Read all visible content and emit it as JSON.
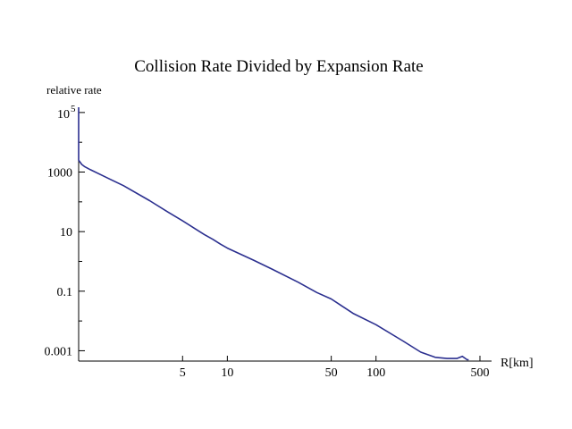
{
  "chart_data": {
    "type": "line",
    "title": "Collision Rate Divided by Expansion Rate",
    "ylabel": "relative rate",
    "xlabel": "R[km]",
    "xscale": "log",
    "yscale": "log",
    "xlim": [
      1,
      560
    ],
    "ylim": [
      0.0004,
      200000
    ],
    "x_ticks": [
      {
        "value": 5,
        "label": "5"
      },
      {
        "value": 10,
        "label": "10"
      },
      {
        "value": 50,
        "label": "50"
      },
      {
        "value": 100,
        "label": "100"
      },
      {
        "value": 500,
        "label": "500"
      }
    ],
    "y_ticks": [
      {
        "value": 100000,
        "base": "10",
        "exp": "5"
      },
      {
        "value": 1000,
        "label": "1000"
      },
      {
        "value": 10,
        "label": "10"
      },
      {
        "value": 0.1,
        "label": "0.1"
      },
      {
        "value": 0.001,
        "label": "0.001"
      }
    ],
    "series": [
      {
        "color": "#2b2f8f",
        "x": [
          1,
          1.0,
          1.02,
          1.05,
          1.1,
          1.2,
          1.5,
          2,
          3,
          4,
          5,
          6,
          7,
          8,
          9,
          10,
          15,
          20,
          30,
          40,
          50,
          60,
          70,
          100,
          150,
          200,
          250,
          300,
          350,
          380,
          410,
          420
        ],
        "y": [
          150000,
          2500,
          2200,
          1800,
          1500,
          1200,
          700,
          350,
          110,
          45,
          23,
          13,
          8,
          5.5,
          3.8,
          2.8,
          1.1,
          0.55,
          0.2,
          0.09,
          0.055,
          0.03,
          0.018,
          0.0075,
          0.0022,
          0.0009,
          0.0006,
          0.00055,
          0.00055,
          0.00065,
          0.0005,
          0.0005
        ]
      }
    ]
  }
}
